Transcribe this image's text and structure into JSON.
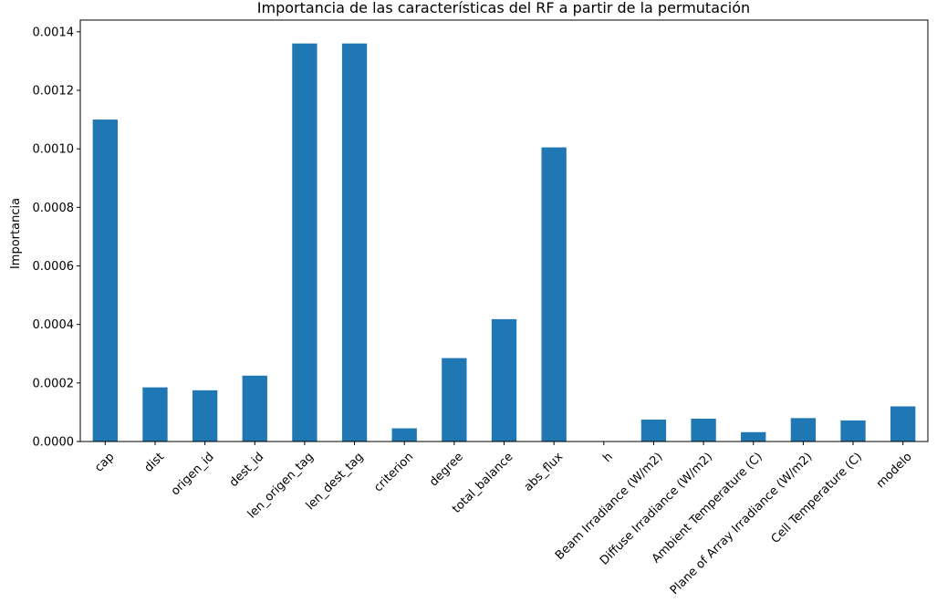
{
  "chart_data": {
    "type": "bar",
    "title": "Importancia de las características del RF a partir de la permutación",
    "xlabel": "",
    "ylabel": "Importancia",
    "ylim": [
      0,
      0.00144
    ],
    "yticks": [
      "0.0000",
      "0.0002",
      "0.0004",
      "0.0006",
      "0.0008",
      "0.0010",
      "0.0012",
      "0.0014"
    ],
    "ytick_values": [
      0,
      0.0002,
      0.0004,
      0.0006,
      0.0008,
      0.001,
      0.0012,
      0.0014
    ],
    "grid": false,
    "legend": "none",
    "bar_color": "#1f77b4",
    "categories": [
      "cap",
      "dist",
      "origen_id",
      "dest_id",
      "len_origen_tag",
      "len_dest_tag",
      "criterion",
      "degree",
      "total_balance",
      "abs_flux",
      "h",
      "Beam Irradiance (W/m2)",
      "Diffuse Irradiance (W/m2)",
      "Ambient Temperature (C)",
      "Plane of Array Irradiance (W/m2)",
      "Cell Temperature (C)",
      "modelo"
    ],
    "values": [
      0.0011,
      0.000185,
      0.000175,
      0.000225,
      0.00136,
      0.00136,
      4.5e-05,
      0.000285,
      0.000418,
      0.001005,
      0.0,
      7.5e-05,
      7.8e-05,
      3.2e-05,
      8e-05,
      7.2e-05,
      0.00012
    ]
  }
}
